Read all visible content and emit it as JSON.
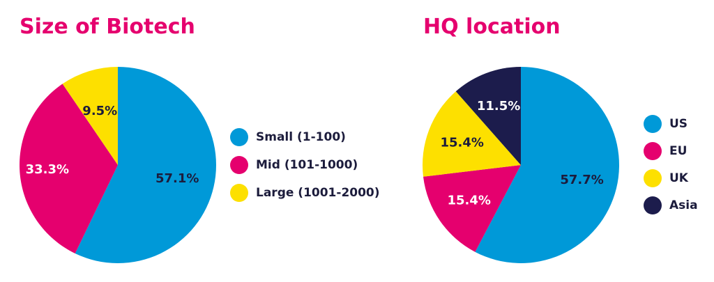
{
  "colors": {
    "title": "#e5006e",
    "text_dark": "#1c1c3c",
    "text_light": "#ffffff"
  },
  "chart_data": [
    {
      "type": "pie",
      "title": "Size of Biotech",
      "legend_position": "right",
      "slices": [
        {
          "label": "Small (1-100)",
          "value": 57.1,
          "value_label": "57.1%",
          "color": "#0099d8",
          "label_color": "#1c1c3c"
        },
        {
          "label": "Mid (101-1000)",
          "value": 33.3,
          "value_label": "33.3%",
          "color": "#e5006e",
          "label_color": "#ffffff"
        },
        {
          "label": "Large (1001-2000)",
          "value": 9.5,
          "value_label": "9.5%",
          "color": "#fde000",
          "label_color": "#1c1c3c"
        }
      ]
    },
    {
      "type": "pie",
      "title": "HQ location",
      "legend_position": "right",
      "slices": [
        {
          "label": "US",
          "value": 57.7,
          "value_label": "57.7%",
          "color": "#0099d8",
          "label_color": "#1c1c3c"
        },
        {
          "label": "EU",
          "value": 15.4,
          "value_label": "15.4%",
          "color": "#e5006e",
          "label_color": "#ffffff"
        },
        {
          "label": "UK",
          "value": 15.4,
          "value_label": "15.4%",
          "color": "#fde000",
          "label_color": "#1c1c3c"
        },
        {
          "label": "Asia",
          "value": 11.5,
          "value_label": "11.5%",
          "color": "#1c1c4c",
          "label_color": "#ffffff"
        }
      ]
    }
  ]
}
